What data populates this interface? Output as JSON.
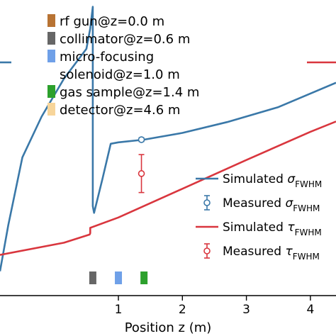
{
  "chart_data": {
    "type": "line",
    "xlabel": "Position z (m)",
    "xlim": [
      -0.85,
      4.4
    ],
    "x_ticks": [
      "1",
      "2",
      "3",
      "4"
    ],
    "series": [
      {
        "name": "Simulated σ_FWHM",
        "color": "#3a78a8",
        "style": "line",
        "x": [
          -0.85,
          -0.72,
          -0.5,
          -0.2,
          0.15,
          0.5,
          0.56,
          0.6,
          0.6,
          0.62,
          0.75,
          0.88,
          1.0,
          1.4,
          2.0,
          2.7,
          3.5,
          4.4
        ],
        "y": [
          -6.6,
          -4.9,
          -2.4,
          -0.9,
          0.5,
          1.6,
          2.35,
          3.15,
          -4.2,
          -4.45,
          -3.2,
          -1.9,
          -1.85,
          -1.75,
          -1.5,
          -1.1,
          -0.55,
          0.35
        ]
      },
      {
        "name": "Measured σ_FWHM",
        "color": "#3a78a8",
        "style": "errorbar",
        "x": [
          1.36
        ],
        "y": [
          -1.75
        ],
        "yerr": [
          0.07
        ]
      },
      {
        "name": "Simulated τ_FWHM",
        "color": "#d9363e",
        "style": "line",
        "x": [
          -0.85,
          0.15,
          0.55,
          0.56,
          0.56,
          1.0,
          2.0,
          3.0,
          4.0,
          4.4
        ],
        "y": [
          -6.0,
          -5.55,
          -5.25,
          -5.2,
          -5.0,
          -4.62,
          -3.56,
          -2.5,
          -1.46,
          -1.08
        ]
      },
      {
        "name": "Measured τ_FWHM",
        "color": "#d9363e",
        "style": "errorbar",
        "x": [
          1.36
        ],
        "y": [
          -3.0
        ],
        "yerr": [
          0.7
        ]
      }
    ],
    "ylim": [
      -7.5,
      3.4
    ],
    "annotations": [
      {
        "label": "rf gun@z=0.0 m",
        "color": "#b87333"
      },
      {
        "label": "collimator@z=0.6 m",
        "color": "#666666"
      },
      {
        "label": "micro-focusing",
        "color": "#6fa0e8"
      },
      {
        "label": "solenoid@z=1.0 m",
        "color": ""
      },
      {
        "label": "gas sample@z=1.4 m",
        "color": "#2ca02c"
      },
      {
        "label": "detector@z=4.6 m",
        "color": "#f7d59a"
      }
    ],
    "component_markers": [
      {
        "name": "collimator",
        "z": 0.6,
        "color": "#666666"
      },
      {
        "name": "micro-focusing solenoid",
        "z": 1.0,
        "color": "#6fa0e8"
      },
      {
        "name": "gas sample",
        "z": 1.4,
        "color": "#2ca02c"
      }
    ],
    "legend": {
      "position": "right",
      "entries": [
        {
          "prefix": "Simulated ",
          "symbol": "σ",
          "sub": "FWHM",
          "color": "#3a78a8",
          "kind": "line"
        },
        {
          "prefix": "Measured ",
          "symbol": "σ",
          "sub": "FWHM",
          "color": "#3a78a8",
          "kind": "errorbar"
        },
        {
          "prefix": "Simulated ",
          "symbol": "τ",
          "sub": "FWHM",
          "color": "#d9363e",
          "kind": "line"
        },
        {
          "prefix": "Measured ",
          "symbol": "τ",
          "sub": "FWHM",
          "color": "#d9363e",
          "kind": "errorbar"
        }
      ]
    }
  }
}
